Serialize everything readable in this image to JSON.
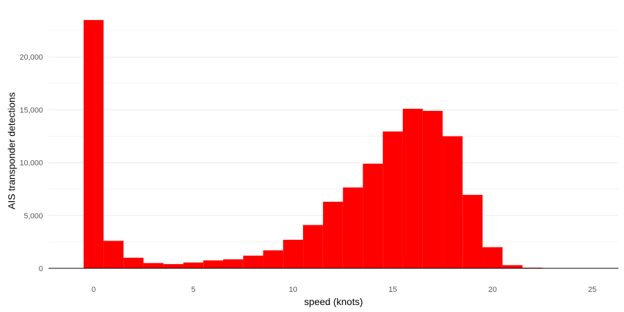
{
  "chart_data": {
    "type": "bar",
    "xlabel": "speed (knots)",
    "ylabel": "AIS transponder detections",
    "bin_width": 1,
    "x": [
      0,
      1,
      2,
      3,
      4,
      5,
      6,
      7,
      8,
      9,
      10,
      11,
      12,
      13,
      14,
      15,
      16,
      17,
      18,
      19,
      20,
      21,
      22,
      23,
      24,
      25
    ],
    "values": [
      23500,
      2600,
      1000,
      500,
      400,
      550,
      750,
      850,
      1200,
      1700,
      2700,
      4100,
      6300,
      7650,
      9900,
      12950,
      15100,
      14900,
      12500,
      6950,
      2000,
      300,
      60,
      20,
      10,
      5
    ],
    "xlim": [
      -1.5,
      26.5
    ],
    "ylim": [
      0,
      23500
    ],
    "x_ticks": [
      0,
      5,
      10,
      15,
      20,
      25
    ],
    "x_tick_labels": [
      "0",
      "5",
      "10",
      "15",
      "20",
      "25"
    ],
    "y_ticks": [
      0,
      5000,
      10000,
      15000,
      20000
    ],
    "y_tick_labels": [
      "0",
      "5,000",
      "10,000",
      "15,000",
      "20,000"
    ],
    "grid": true,
    "legend": "none",
    "bar_color": "#ff0000",
    "baseline_color": "#000000"
  }
}
